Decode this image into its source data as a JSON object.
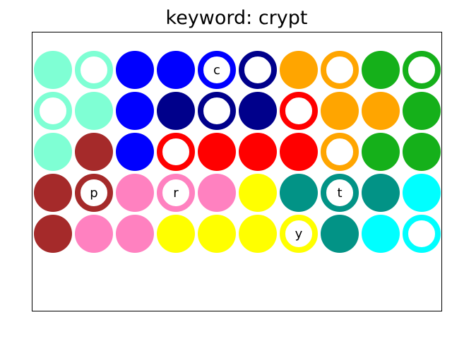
{
  "title": "keyword: crypt",
  "palette": {
    "aquamarine": "#7fffd4",
    "blue": "#0000ff",
    "navy": "#00008b",
    "orange": "#ffa500",
    "green": "#15b01a",
    "brown": "#a52a2a",
    "red": "#ff0000",
    "pink": "#ff81c0",
    "yellow": "#ffff00",
    "teal": "#029386",
    "cyan": "#00ffff"
  },
  "grid": [
    [
      {
        "color": "aquamarine",
        "style": "solid",
        "letter": ""
      },
      {
        "color": "aquamarine",
        "style": "ring",
        "letter": ""
      },
      {
        "color": "blue",
        "style": "solid",
        "letter": ""
      },
      {
        "color": "blue",
        "style": "solid",
        "letter": ""
      },
      {
        "color": "blue",
        "style": "ring",
        "letter": "c"
      },
      {
        "color": "navy",
        "style": "ring",
        "letter": ""
      },
      {
        "color": "orange",
        "style": "solid",
        "letter": ""
      },
      {
        "color": "orange",
        "style": "ring",
        "letter": ""
      },
      {
        "color": "green",
        "style": "solid",
        "letter": ""
      },
      {
        "color": "green",
        "style": "ring",
        "letter": ""
      }
    ],
    [
      {
        "color": "aquamarine",
        "style": "ring",
        "letter": ""
      },
      {
        "color": "aquamarine",
        "style": "solid",
        "letter": ""
      },
      {
        "color": "blue",
        "style": "solid",
        "letter": ""
      },
      {
        "color": "navy",
        "style": "solid",
        "letter": ""
      },
      {
        "color": "navy",
        "style": "ring",
        "letter": ""
      },
      {
        "color": "navy",
        "style": "solid",
        "letter": ""
      },
      {
        "color": "red",
        "style": "ring",
        "letter": ""
      },
      {
        "color": "orange",
        "style": "solid",
        "letter": ""
      },
      {
        "color": "orange",
        "style": "solid",
        "letter": ""
      },
      {
        "color": "green",
        "style": "solid",
        "letter": ""
      }
    ],
    [
      {
        "color": "aquamarine",
        "style": "solid",
        "letter": ""
      },
      {
        "color": "brown",
        "style": "solid",
        "letter": ""
      },
      {
        "color": "blue",
        "style": "solid",
        "letter": ""
      },
      {
        "color": "red",
        "style": "ring",
        "letter": ""
      },
      {
        "color": "red",
        "style": "solid",
        "letter": ""
      },
      {
        "color": "red",
        "style": "solid",
        "letter": ""
      },
      {
        "color": "red",
        "style": "solid",
        "letter": ""
      },
      {
        "color": "orange",
        "style": "ring",
        "letter": ""
      },
      {
        "color": "green",
        "style": "solid",
        "letter": ""
      },
      {
        "color": "green",
        "style": "solid",
        "letter": ""
      }
    ],
    [
      {
        "color": "brown",
        "style": "solid",
        "letter": ""
      },
      {
        "color": "brown",
        "style": "ring",
        "letter": "p"
      },
      {
        "color": "pink",
        "style": "solid",
        "letter": ""
      },
      {
        "color": "pink",
        "style": "ring",
        "letter": "r"
      },
      {
        "color": "pink",
        "style": "solid",
        "letter": ""
      },
      {
        "color": "yellow",
        "style": "solid",
        "letter": ""
      },
      {
        "color": "teal",
        "style": "solid",
        "letter": ""
      },
      {
        "color": "teal",
        "style": "ring",
        "letter": "t"
      },
      {
        "color": "teal",
        "style": "solid",
        "letter": ""
      },
      {
        "color": "cyan",
        "style": "solid",
        "letter": ""
      }
    ],
    [
      {
        "color": "brown",
        "style": "solid",
        "letter": ""
      },
      {
        "color": "pink",
        "style": "solid",
        "letter": ""
      },
      {
        "color": "pink",
        "style": "solid",
        "letter": ""
      },
      {
        "color": "yellow",
        "style": "solid",
        "letter": ""
      },
      {
        "color": "yellow",
        "style": "solid",
        "letter": ""
      },
      {
        "color": "yellow",
        "style": "solid",
        "letter": ""
      },
      {
        "color": "yellow",
        "style": "ring",
        "letter": "y"
      },
      {
        "color": "teal",
        "style": "solid",
        "letter": ""
      },
      {
        "color": "cyan",
        "style": "solid",
        "letter": ""
      },
      {
        "color": "cyan",
        "style": "ring",
        "letter": ""
      }
    ]
  ]
}
